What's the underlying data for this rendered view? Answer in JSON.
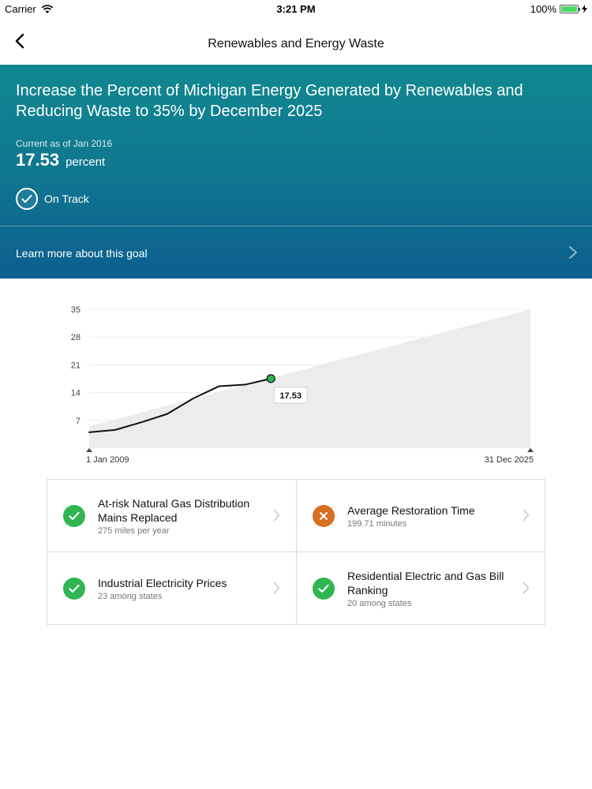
{
  "status_bar": {
    "carrier": "Carrier",
    "time": "3:21 PM",
    "battery": "100%"
  },
  "nav": {
    "title": "Renewables and Energy Waste",
    "back_icon": "chevron-left-icon"
  },
  "goal": {
    "title": "Increase the Percent of Michigan Energy Generated by Renewables and Reducing Waste to 35% by December 2025",
    "current_label": "Current as of Jan 2016",
    "current_value": "17.53",
    "unit": "percent",
    "status": "On Track",
    "learn_more": "Learn more about this goal"
  },
  "colors": {
    "hero_top": "#11888f",
    "hero_bottom": "#0c5f8f",
    "good": "#2fb551",
    "bad": "#d77020",
    "chart_fill": "#ececef"
  },
  "chart_data": {
    "type": "line",
    "yticks": [
      7,
      14,
      21,
      28,
      35
    ],
    "ylim": [
      0,
      35
    ],
    "x_start_label": "1 Jan 2009",
    "x_end_label": "31 Dec 2025",
    "xlim": [
      2009.0,
      2026.0
    ],
    "series": [
      {
        "x": [
          2009.0,
          2010.0,
          2011.0,
          2012.0,
          2013.0,
          2014.0,
          2015.0,
          2016.0
        ],
        "y": [
          4.0,
          4.6,
          6.5,
          8.6,
          12.5,
          15.6,
          16.0,
          17.53
        ]
      }
    ],
    "target_area": {
      "x": [
        2009.0,
        2026.0
      ],
      "y": [
        5.5,
        35.0
      ]
    },
    "callout": "17.53"
  },
  "metrics": [
    {
      "title": "At-risk Natural Gas Distribution Mains Replaced",
      "value": "275 miles per year",
      "status": "good"
    },
    {
      "title": "Average Restoration Time",
      "value": "199.71 minutes",
      "status": "bad"
    },
    {
      "title": "Industrial Electricity Prices",
      "value": "23 among states",
      "status": "good"
    },
    {
      "title": "Residential Electric and Gas Bill Ranking",
      "value": "20 among states",
      "status": "good"
    }
  ]
}
